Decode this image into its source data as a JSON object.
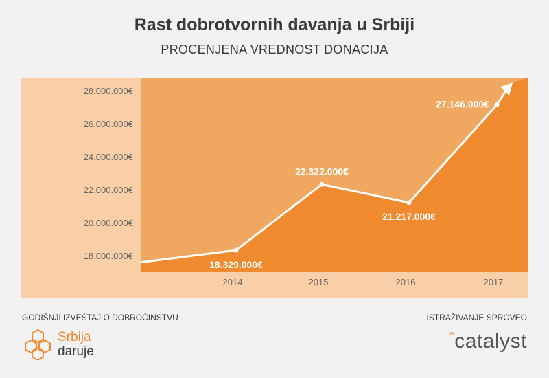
{
  "header": {
    "title": "Rast dobrotvornih davanja u Srbiji",
    "subtitle": "PROCENJENA VREDNOST DONACIJA"
  },
  "chart_data": {
    "type": "area",
    "title": "Rast dobrotvornih davanja u Srbiji",
    "subtitle": "PROCENJENA VREDNOST DONACIJA",
    "xlabel": "",
    "ylabel": "",
    "x": [
      "2014",
      "2015",
      "2016",
      "2017"
    ],
    "series": [
      {
        "values": [
          18329000,
          22322000,
          21217000,
          27146000
        ],
        "data_labels": [
          "18.329.000€",
          "22.322.000€",
          "21.217.000€",
          "27.146.000€"
        ]
      }
    ],
    "y_ticks": [
      "18.000.000€",
      "20.000.000€",
      "22.000.000€",
      "24.000.000€",
      "26.000.000€",
      "28.000.000€"
    ],
    "y_tick_values": [
      18000000,
      20000000,
      22000000,
      24000000,
      26000000,
      28000000
    ],
    "ylim": [
      17000000,
      28800000
    ],
    "grid": false,
    "colors": {
      "panel": "#f9cfa8",
      "plot_bg": "#f0a860",
      "area": "#f08a2e",
      "line": "#ffffff",
      "tick_text": "#666666"
    }
  },
  "footer": {
    "left_caption": "GODIŠNJI IZVEŠTAJ O DOBROČINSTVU",
    "right_caption": "ISTRAŽIVANJE SPROVEO",
    "left_logo": {
      "line1": "Srbija",
      "line2": "daruje",
      "icon": "hexagon-cluster-icon"
    },
    "right_logo": {
      "text": "catalyst",
      "icon": "dots-icon"
    }
  }
}
